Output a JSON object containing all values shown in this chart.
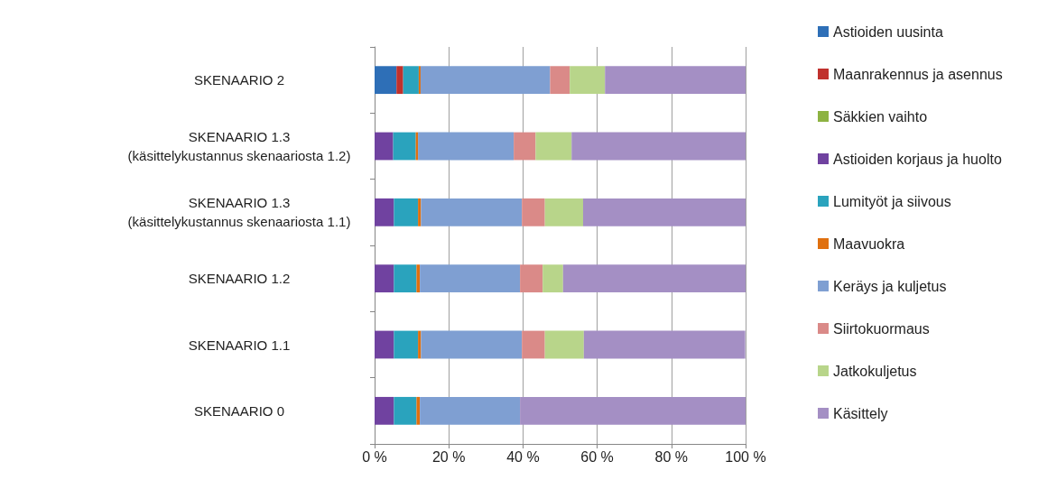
{
  "chart_data": {
    "type": "bar",
    "orientation": "horizontal",
    "stacked": true,
    "categories": [
      "SKENAARIO 2",
      "SKENAARIO 1.3\n(käsittelykustannus skenaariosta 1.2)",
      "SKENAARIO 1.3\n(käsittelykustannus skenaariosta 1.1)",
      "SKENAARIO 1.2",
      "SKENAARIO 1.1",
      "SKENAARIO 0"
    ],
    "series": [
      {
        "name": "Astioiden uusinta",
        "color": "#2e6fb7",
        "values": [
          5.9,
          0,
          0,
          0,
          0,
          0
        ]
      },
      {
        "name": "Maanrakennus ja asennus",
        "color": "#c0312d",
        "values": [
          1.8,
          0,
          0,
          0,
          0,
          0
        ]
      },
      {
        "name": "Säkkien vaihto",
        "color": "#8db342",
        "values": [
          0,
          0,
          0,
          0,
          0,
          0
        ]
      },
      {
        "name": "Astioiden korjaus ja huolto",
        "color": "#7042a0",
        "values": [
          0,
          5.0,
          5.2,
          5.2,
          5.2,
          5.2
        ]
      },
      {
        "name": "Lumityöt ja siivous",
        "color": "#2aa3bd",
        "values": [
          4.2,
          6.1,
          6.5,
          6.1,
          6.5,
          6.1
        ]
      },
      {
        "name": "Maavuokra",
        "color": "#e0700f",
        "values": [
          0.5,
          0.6,
          0.8,
          0.9,
          0.8,
          0.9
        ]
      },
      {
        "name": "Keräys ja kuljetus",
        "color": "#7f9fd2",
        "values": [
          34.9,
          25.8,
          27.2,
          27.0,
          27.2,
          27.0
        ]
      },
      {
        "name": "Siirtokuormaus",
        "color": "#da8a88",
        "values": [
          5.3,
          5.9,
          6.2,
          6.1,
          6.2,
          0
        ]
      },
      {
        "name": "Jatkokuljetus",
        "color": "#b8d58a",
        "values": [
          9.5,
          9.7,
          10.3,
          5.5,
          10.5,
          0
        ]
      },
      {
        "name": "Käsittely",
        "color": "#a48fc4",
        "values": [
          37.9,
          46.9,
          43.8,
          49.2,
          43.5,
          60.8
        ]
      }
    ],
    "xlim": [
      0,
      100
    ],
    "xticks": [
      {
        "value": 0,
        "label": "0 %"
      },
      {
        "value": 20,
        "label": "20 %"
      },
      {
        "value": 40,
        "label": "40 %"
      },
      {
        "value": 60,
        "label": "60 %"
      },
      {
        "value": 80,
        "label": "80 %"
      },
      {
        "value": 100,
        "label": "100 %"
      }
    ],
    "grid": "x",
    "legend": "right"
  }
}
